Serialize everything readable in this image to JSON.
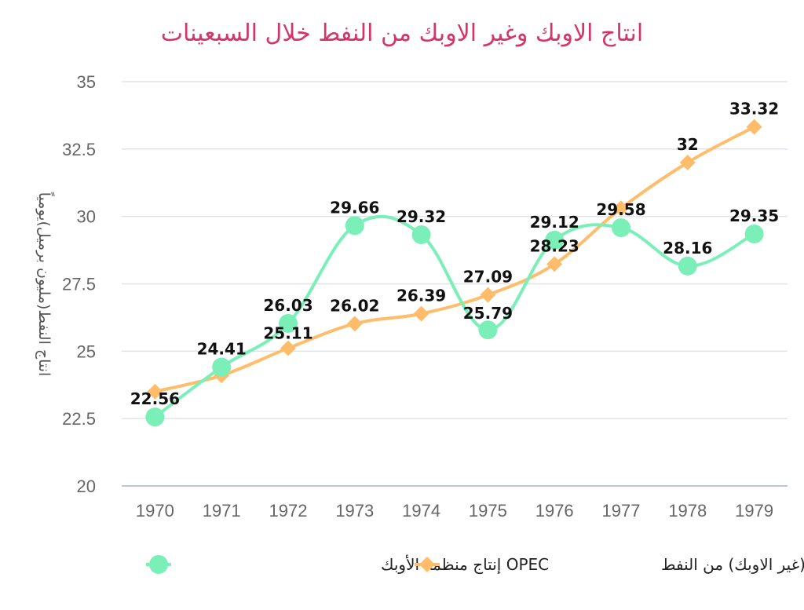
{
  "chart_data": {
    "type": "line",
    "title": "انتاج الاوبك وغير الاوبك من النفط خلال السبعينات",
    "xlabel": "",
    "ylabel": "انتاج النفط(مليون برميل)يومياً",
    "categories": [
      "1970",
      "1971",
      "1972",
      "1973",
      "1974",
      "1975",
      "1976",
      "1977",
      "1978",
      "1979"
    ],
    "ylim": [
      20,
      35
    ],
    "yticks": [
      "20",
      "22.5",
      "25",
      "27.5",
      "30",
      "32.5",
      "35"
    ],
    "grid": true,
    "legend_position": "bottom",
    "series": [
      {
        "name": "OPEC إنتاج منظمة الأوبك",
        "marker": "circle",
        "color": "#7af0b8",
        "smooth": true,
        "values": [
          22.56,
          24.41,
          26.03,
          29.66,
          29.32,
          25.79,
          29.12,
          29.58,
          28.16,
          29.35
        ],
        "labels": [
          "22.56",
          "24.41",
          "26.03",
          "29.66",
          "29.32",
          "25.79",
          "29.12",
          "29.58",
          "28.16",
          "29.35"
        ]
      },
      {
        "name": "انتاج (غير الاوبك) من النفط",
        "marker": "diamond",
        "color": "#ffbd6b",
        "smooth": true,
        "values": [
          23.5,
          24.1,
          25.11,
          26.02,
          26.39,
          27.09,
          28.23,
          30.3,
          32.0,
          33.32
        ],
        "labels": [
          "",
          "",
          "25.11",
          "26.02",
          "26.39",
          "27.09",
          "28.23",
          "",
          "32",
          "33.32"
        ]
      }
    ]
  }
}
